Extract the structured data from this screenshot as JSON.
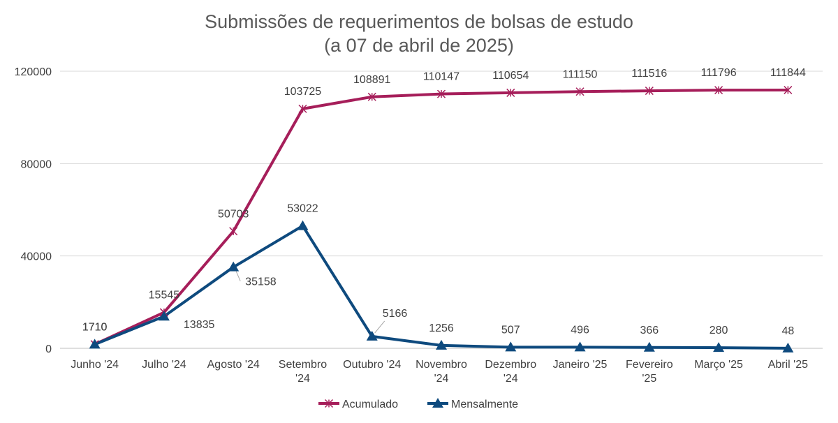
{
  "chart_data": {
    "type": "line",
    "title": [
      "Submissões de requerimentos de bolsas de estudo",
      "(a 07 de abril de 2025)"
    ],
    "categories": [
      [
        "Junho '24"
      ],
      [
        "Julho '24"
      ],
      [
        "Agosto '24"
      ],
      [
        "Setembro",
        "'24"
      ],
      [
        "Outubro '24"
      ],
      [
        "Novembro",
        "'24"
      ],
      [
        "Dezembro",
        "'24"
      ],
      [
        "Janeiro '25"
      ],
      [
        "Fevereiro",
        "'25"
      ],
      [
        "Março '25"
      ],
      [
        "Abril '25"
      ]
    ],
    "ylim": [
      0,
      120000
    ],
    "yticks": [
      0,
      40000,
      80000,
      120000
    ],
    "grid": true,
    "legend_position": "bottom",
    "series": [
      {
        "name": "Acumulado",
        "color": "#A61E5A",
        "marker": "asterisk",
        "values": [
          1710,
          15545,
          50703,
          103725,
          108891,
          110147,
          110654,
          111150,
          111516,
          111796,
          111844
        ],
        "labels": [
          "1710",
          "15545",
          "50703",
          "103725",
          "108891",
          "110147",
          "110654",
          "111150",
          "111516",
          "111796",
          "111844"
        ]
      },
      {
        "name": "Mensalmente",
        "color": "#0E4A7E",
        "marker": "triangle",
        "values": [
          1710,
          13835,
          35158,
          53022,
          5166,
          1256,
          507,
          496,
          366,
          280,
          48
        ],
        "labels": [
          "1710",
          "13835",
          "35158",
          "53022",
          "5166",
          "1256",
          "507",
          "496",
          "366",
          "280",
          "48"
        ]
      }
    ]
  }
}
